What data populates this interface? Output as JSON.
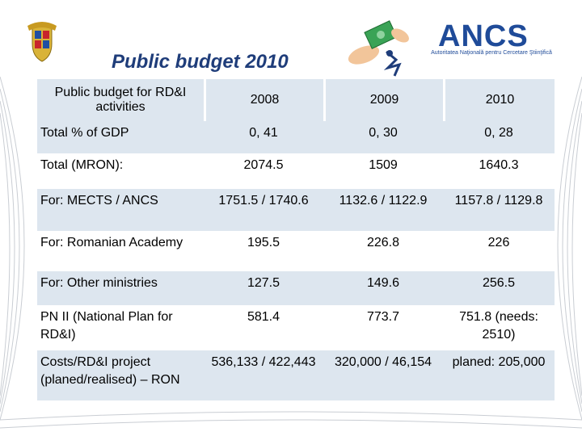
{
  "title": "Public budget 2010",
  "logo": {
    "name": "ANCS",
    "subtitle": "Autoritatea Naţională pentru Cercetare Ştiinţifică"
  },
  "table": {
    "headers": [
      "Public budget for RD&I activities",
      "2008",
      "2009",
      "2010"
    ],
    "rows": [
      [
        "Total % of GDP",
        "0, 41",
        "0, 30",
        "0, 28"
      ],
      [
        "Total (MRON):",
        "2074.5",
        "1509",
        "1640.3"
      ],
      [
        "For: MECTS / ANCS",
        "1751.5 / 1740.6",
        "1132.6 / 1122.9",
        "1157.8 / 1129.8"
      ],
      [
        "For: Romanian Academy",
        "195.5",
        "226.8",
        "226"
      ],
      [
        "For: Other ministries",
        "127.5",
        "149.6",
        "256.5"
      ],
      [
        "PN II (National Plan for RD&I)",
        "581.4",
        "773.7",
        "751.8 (needs: 2510)"
      ],
      [
        "Costs/RD&I project (planed/realised) – RON",
        "536,133 / 422,443",
        "320,000 / 46,154",
        "planed: 205,000"
      ]
    ]
  }
}
